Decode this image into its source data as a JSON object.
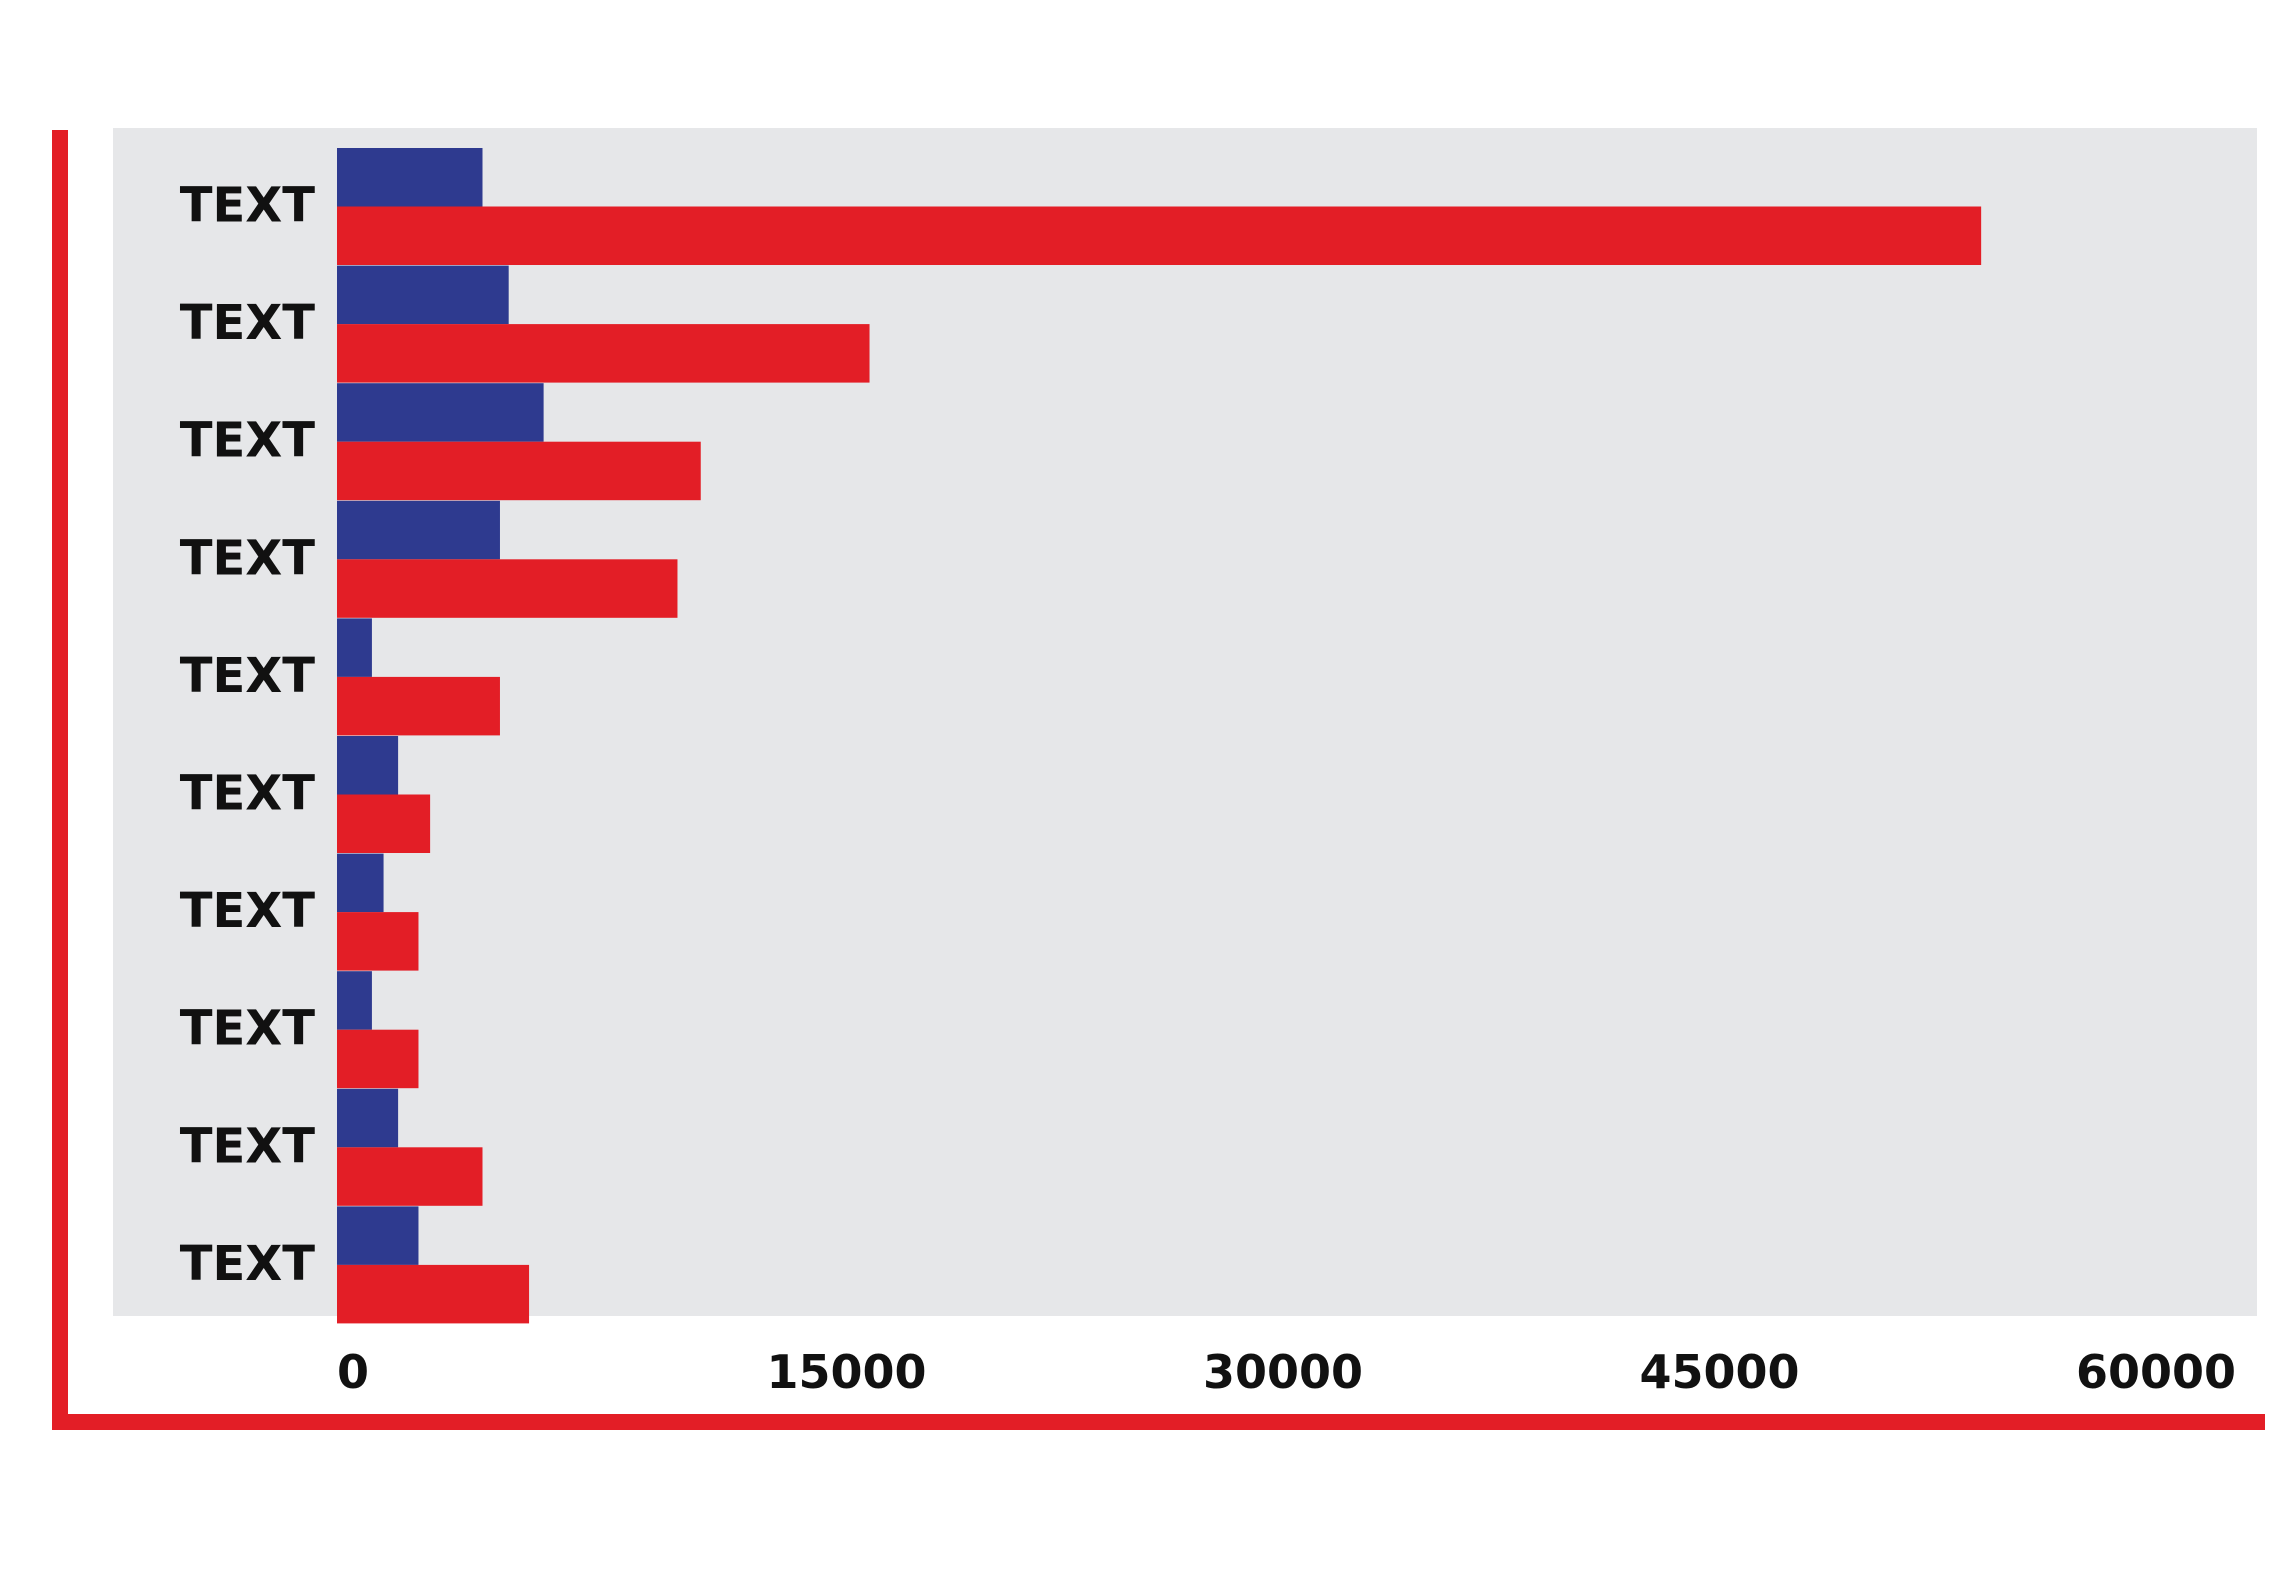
{
  "colors": {
    "frame": "#e31e26",
    "plot_background": "#e6e7e9",
    "text": "#111111"
  },
  "chart_data": {
    "type": "bar",
    "orientation": "horizontal",
    "title": "",
    "xlabel": "",
    "ylabel": "",
    "xlim": [
      0,
      60000
    ],
    "x_ticks": [
      "0",
      "15000",
      "30000",
      "45000",
      "60000"
    ],
    "grid": false,
    "legend": "none",
    "categories": [
      "TEXT",
      "TEXT",
      "TEXT",
      "TEXT",
      "TEXT",
      "TEXT",
      "TEXT",
      "TEXT",
      "TEXT",
      "TEXT"
    ],
    "series": [
      {
        "color": "#2e3a8f",
        "values": [
          5000,
          5900,
          7100,
          5600,
          1200,
          2100,
          1600,
          1200,
          2100,
          2800
        ]
      },
      {
        "color": "#e31e26",
        "values": [
          56500,
          18300,
          12500,
          11700,
          5600,
          3200,
          2800,
          2800,
          5000,
          6600
        ]
      }
    ]
  }
}
